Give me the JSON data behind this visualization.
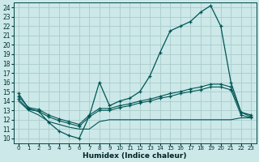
{
  "xlabel": "Humidex (Indice chaleur)",
  "background_color": "#cce8e8",
  "grid_color": "#aacccc",
  "line_color": "#005555",
  "xlim": [
    -0.5,
    23.5
  ],
  "ylim": [
    9.5,
    24.5
  ],
  "x_ticks": [
    0,
    1,
    2,
    3,
    4,
    5,
    6,
    7,
    8,
    9,
    10,
    11,
    12,
    13,
    14,
    15,
    16,
    17,
    18,
    19,
    20,
    21,
    22,
    23
  ],
  "y_ticks": [
    10,
    11,
    12,
    13,
    14,
    15,
    16,
    17,
    18,
    19,
    20,
    21,
    22,
    23,
    24
  ],
  "line1_x": [
    0,
    1,
    2,
    3,
    4,
    5,
    6,
    7,
    8,
    9,
    10,
    11,
    12,
    13,
    14,
    15,
    16,
    17,
    18,
    19,
    20,
    21,
    22,
    23
  ],
  "line1_y": [
    14.8,
    13.2,
    12.9,
    11.7,
    10.8,
    10.3,
    10.0,
    12.4,
    16.0,
    13.5,
    14.0,
    14.3,
    15.0,
    16.7,
    19.2,
    21.5,
    22.0,
    22.5,
    23.5,
    24.2,
    22.0,
    16.0,
    12.8,
    12.5
  ],
  "line2_x": [
    0,
    1,
    2,
    3,
    4,
    5,
    6,
    7,
    8,
    9,
    10,
    11,
    12,
    13,
    14,
    15,
    16,
    17,
    18,
    19,
    20,
    21,
    22,
    23
  ],
  "line2_y": [
    14.5,
    13.3,
    13.1,
    12.5,
    12.1,
    11.8,
    11.5,
    12.5,
    13.2,
    13.2,
    13.5,
    13.7,
    14.0,
    14.2,
    14.5,
    14.8,
    15.0,
    15.3,
    15.5,
    15.8,
    15.8,
    15.5,
    12.8,
    12.3
  ],
  "line3_x": [
    0,
    1,
    2,
    3,
    4,
    5,
    6,
    7,
    8,
    9,
    10,
    11,
    12,
    13,
    14,
    15,
    16,
    17,
    18,
    19,
    20,
    21,
    22,
    23
  ],
  "line3_y": [
    14.2,
    13.1,
    12.9,
    12.3,
    11.9,
    11.6,
    11.3,
    12.3,
    13.0,
    13.0,
    13.3,
    13.5,
    13.8,
    14.0,
    14.3,
    14.5,
    14.8,
    15.0,
    15.2,
    15.5,
    15.5,
    15.2,
    12.5,
    12.2
  ],
  "line4_x": [
    0,
    1,
    2,
    3,
    4,
    5,
    6,
    7,
    8,
    9,
    10,
    11,
    12,
    13,
    14,
    15,
    16,
    17,
    18,
    19,
    20,
    21,
    22,
    23
  ],
  "line4_y": [
    14.0,
    13.0,
    12.5,
    11.8,
    11.5,
    11.2,
    11.0,
    11.0,
    11.8,
    12.0,
    12.0,
    12.0,
    12.0,
    12.0,
    12.0,
    12.0,
    12.0,
    12.0,
    12.0,
    12.0,
    12.0,
    12.0,
    12.2,
    12.2
  ]
}
